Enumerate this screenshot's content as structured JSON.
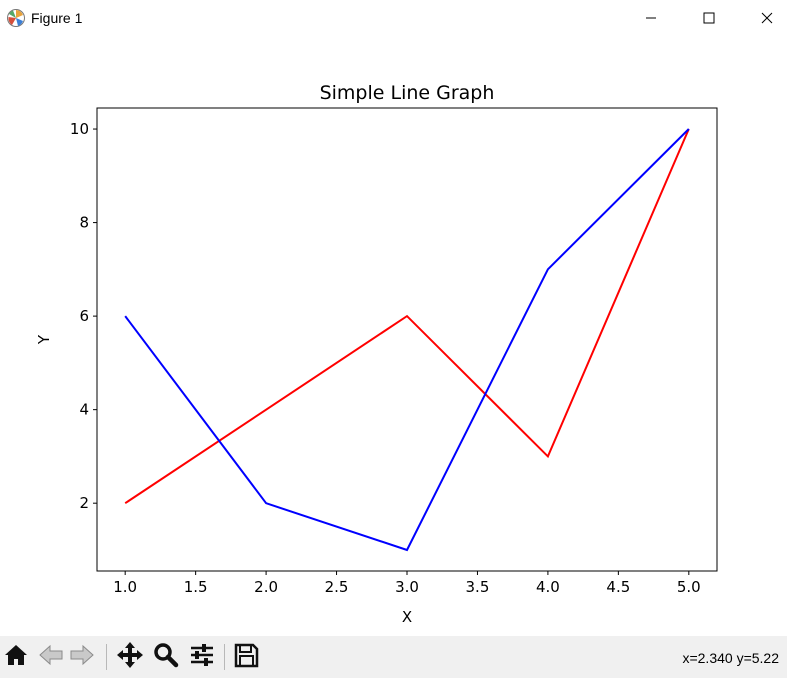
{
  "window": {
    "title": "Figure 1",
    "minimize_icon": "minimize-icon",
    "maximize_icon": "maximize-icon",
    "close_icon": "close-icon"
  },
  "toolbar": {
    "buttons": [
      {
        "name": "home",
        "icon": "home-icon"
      },
      {
        "name": "back",
        "icon": "back-arrow-icon"
      },
      {
        "name": "forward",
        "icon": "forward-arrow-icon"
      },
      {
        "name": "pan",
        "icon": "move-icon"
      },
      {
        "name": "zoom",
        "icon": "magnifier-icon"
      },
      {
        "name": "configure-subplots",
        "icon": "sliders-icon"
      },
      {
        "name": "save",
        "icon": "floppy-disk-icon"
      }
    ],
    "coords_text": "x=2.340 y=5.22"
  },
  "chart_data": {
    "type": "line",
    "title": "Simple Line Graph",
    "xlabel": "X",
    "ylabel": "Y",
    "x": [
      1.0,
      2.0,
      3.0,
      4.0,
      5.0
    ],
    "series": [
      {
        "values": [
          2,
          4,
          6,
          3,
          10
        ],
        "color": "#ff0000"
      },
      {
        "values": [
          6,
          2,
          1,
          7,
          10
        ],
        "color": "#0000ff"
      }
    ],
    "xlim": [
      0.8,
      5.2
    ],
    "ylim": [
      0.55,
      10.45
    ],
    "xticks": [
      1.0,
      1.5,
      2.0,
      2.5,
      3.0,
      3.5,
      4.0,
      4.5,
      5.0
    ],
    "xtick_labels": [
      "1.0",
      "1.5",
      "2.0",
      "2.5",
      "3.0",
      "3.5",
      "4.0",
      "4.5",
      "5.0"
    ],
    "yticks": [
      2,
      4,
      6,
      8,
      10
    ],
    "ytick_labels": [
      "2",
      "4",
      "6",
      "8",
      "10"
    ],
    "grid": false,
    "legend": "none"
  }
}
